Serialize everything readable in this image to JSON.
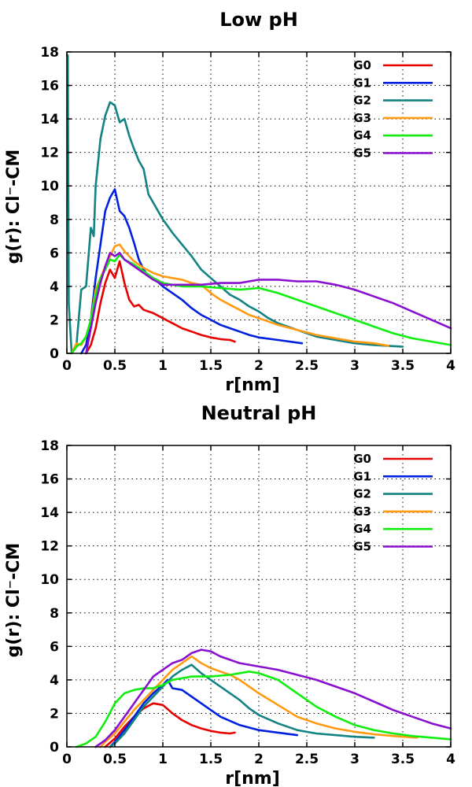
{
  "colors": {
    "G0": "#e60000",
    "G1": "#0020e0",
    "G2": "#138282",
    "G3": "#ff9a10",
    "G4": "#10ee10",
    "G5": "#8a10d0"
  },
  "chart_data": [
    {
      "type": "line",
      "title": "Low pH",
      "xlabel": "r[nm]",
      "ylabel": "g(r): Cl⁻-CM",
      "xlim": [
        0,
        4
      ],
      "ylim": [
        0,
        18
      ],
      "xticks": [
        "0",
        "0.5",
        "1",
        "1.5",
        "2",
        "2.5",
        "3",
        "3.5",
        "4"
      ],
      "yticks": [
        "0",
        "2",
        "4",
        "6",
        "8",
        "10",
        "12",
        "14",
        "16",
        "18"
      ],
      "grid": true,
      "legend_position": "top-right",
      "series": [
        {
          "name": "G0",
          "x": [
            0.2,
            0.25,
            0.3,
            0.35,
            0.4,
            0.45,
            0.5,
            0.55,
            0.6,
            0.65,
            0.7,
            0.75,
            0.8,
            0.9,
            1.0,
            1.1,
            1.2,
            1.3,
            1.4,
            1.5,
            1.6,
            1.7,
            1.75
          ],
          "y": [
            0,
            0.5,
            1.5,
            3.0,
            4.2,
            5.0,
            4.5,
            5.5,
            4.2,
            3.2,
            2.8,
            2.9,
            2.6,
            2.4,
            2.1,
            1.8,
            1.5,
            1.3,
            1.1,
            0.95,
            0.85,
            0.8,
            0.7
          ]
        },
        {
          "name": "G1",
          "x": [
            0.15,
            0.2,
            0.25,
            0.3,
            0.35,
            0.4,
            0.45,
            0.5,
            0.55,
            0.6,
            0.65,
            0.7,
            0.75,
            0.8,
            0.85,
            0.9,
            1.0,
            1.1,
            1.2,
            1.3,
            1.4,
            1.5,
            1.6,
            1.7,
            1.8,
            1.9,
            2.0,
            2.2,
            2.45
          ],
          "y": [
            0,
            0.5,
            2.0,
            4.5,
            6.5,
            8.5,
            9.3,
            9.8,
            8.5,
            8.2,
            7.5,
            6.6,
            5.6,
            5.0,
            4.6,
            4.5,
            4.0,
            3.6,
            3.2,
            2.7,
            2.3,
            2.0,
            1.7,
            1.5,
            1.3,
            1.1,
            0.95,
            0.8,
            0.6
          ]
        },
        {
          "name": "G2",
          "x": [
            0.01,
            0.02,
            0.05,
            0.1,
            0.15,
            0.2,
            0.25,
            0.28,
            0.3,
            0.35,
            0.4,
            0.45,
            0.5,
            0.55,
            0.6,
            0.65,
            0.7,
            0.75,
            0.8,
            0.85,
            0.9,
            1.0,
            1.1,
            1.2,
            1.3,
            1.4,
            1.5,
            1.6,
            1.7,
            1.8,
            1.9,
            2.0,
            2.1,
            2.2,
            2.4,
            2.6,
            2.8,
            3.0,
            3.2,
            3.5
          ],
          "y": [
            17.8,
            3.0,
            0,
            0.5,
            3.8,
            4.0,
            7.5,
            7.0,
            10.0,
            12.8,
            14.2,
            15.0,
            14.8,
            13.8,
            14.0,
            13.0,
            12.2,
            11.5,
            11.0,
            9.5,
            9.0,
            8.0,
            7.2,
            6.5,
            5.8,
            5.0,
            4.5,
            4.0,
            3.5,
            3.2,
            2.8,
            2.5,
            2.1,
            1.8,
            1.4,
            1.0,
            0.8,
            0.6,
            0.5,
            0.4
          ]
        },
        {
          "name": "G3",
          "x": [
            0.05,
            0.1,
            0.15,
            0.2,
            0.25,
            0.3,
            0.35,
            0.4,
            0.45,
            0.5,
            0.55,
            0.6,
            0.65,
            0.7,
            0.8,
            0.9,
            1.0,
            1.1,
            1.2,
            1.3,
            1.4,
            1.5,
            1.6,
            1.7,
            1.8,
            1.9,
            2.0,
            2.2,
            2.4,
            2.6,
            2.8,
            3.0,
            3.2,
            3.35
          ],
          "y": [
            0,
            0.6,
            0.5,
            1.0,
            2.0,
            3.8,
            4.5,
            5.2,
            5.8,
            6.4,
            6.5,
            6.1,
            5.8,
            5.5,
            5.1,
            4.8,
            4.6,
            4.5,
            4.4,
            4.2,
            4.1,
            3.6,
            3.2,
            2.9,
            2.6,
            2.3,
            2.1,
            1.7,
            1.4,
            1.1,
            0.9,
            0.7,
            0.6,
            0.45
          ]
        },
        {
          "name": "G4",
          "x": [
            0.05,
            0.1,
            0.15,
            0.2,
            0.25,
            0.3,
            0.35,
            0.4,
            0.45,
            0.5,
            0.55,
            0.6,
            0.7,
            0.8,
            0.9,
            1.0,
            1.2,
            1.4,
            1.6,
            1.8,
            2.0,
            2.2,
            2.4,
            2.6,
            2.8,
            3.0,
            3.2,
            3.4,
            3.6,
            3.8,
            4.0
          ],
          "y": [
            0,
            0.4,
            0.6,
            1.0,
            2.0,
            3.5,
            4.5,
            5.0,
            5.6,
            5.5,
            5.9,
            5.6,
            5.3,
            4.9,
            4.5,
            4.2,
            4.0,
            4.0,
            3.9,
            3.8,
            3.9,
            3.6,
            3.2,
            2.8,
            2.4,
            2.0,
            1.6,
            1.2,
            0.9,
            0.7,
            0.5
          ]
        },
        {
          "name": "G5",
          "x": [
            0.2,
            0.25,
            0.3,
            0.35,
            0.4,
            0.45,
            0.5,
            0.55,
            0.6,
            0.7,
            0.8,
            0.9,
            1.0,
            1.2,
            1.4,
            1.6,
            1.8,
            2.0,
            2.2,
            2.4,
            2.6,
            2.8,
            3.0,
            3.2,
            3.4,
            3.6,
            3.8,
            4.0
          ],
          "y": [
            0,
            1.5,
            3.0,
            4.2,
            5.2,
            6.0,
            5.8,
            6.0,
            5.6,
            5.2,
            4.8,
            4.4,
            4.1,
            4.1,
            4.1,
            4.2,
            4.2,
            4.4,
            4.4,
            4.3,
            4.3,
            4.1,
            3.8,
            3.4,
            3.0,
            2.5,
            2.0,
            1.5
          ]
        }
      ]
    },
    {
      "type": "line",
      "title": "Neutral pH",
      "xlabel": "r[nm]",
      "ylabel": "g(r): Cl⁻-CM",
      "xlim": [
        0,
        4
      ],
      "ylim": [
        0,
        18
      ],
      "xticks": [
        "0",
        "0.5",
        "1",
        "1.5",
        "2",
        "2.5",
        "3",
        "3.5",
        "4"
      ],
      "yticks": [
        "0",
        "2",
        "4",
        "6",
        "8",
        "10",
        "12",
        "14",
        "16",
        "18"
      ],
      "grid": true,
      "legend_position": "top-right",
      "series": [
        {
          "name": "G0",
          "x": [
            0.4,
            0.5,
            0.6,
            0.7,
            0.8,
            0.9,
            1.0,
            1.1,
            1.2,
            1.3,
            1.4,
            1.5,
            1.6,
            1.7,
            1.75
          ],
          "y": [
            0,
            0.5,
            1.2,
            1.8,
            2.3,
            2.6,
            2.5,
            2.0,
            1.6,
            1.3,
            1.1,
            0.95,
            0.85,
            0.8,
            0.85
          ]
        },
        {
          "name": "G1",
          "x": [
            0.45,
            0.5,
            0.6,
            0.7,
            0.8,
            0.9,
            1.0,
            1.05,
            1.1,
            1.2,
            1.3,
            1.4,
            1.5,
            1.6,
            1.8,
            2.0,
            2.2,
            2.4
          ],
          "y": [
            0,
            0.3,
            1.0,
            1.8,
            2.6,
            3.2,
            3.7,
            4.0,
            3.5,
            3.4,
            3.0,
            2.6,
            2.2,
            1.8,
            1.3,
            1.0,
            0.85,
            0.7
          ]
        },
        {
          "name": "G2",
          "x": [
            0.45,
            0.5,
            0.6,
            0.7,
            0.8,
            0.9,
            1.0,
            1.1,
            1.2,
            1.3,
            1.4,
            1.5,
            1.6,
            1.7,
            1.8,
            1.9,
            2.0,
            2.2,
            2.4,
            2.6,
            2.8,
            3.0,
            3.2
          ],
          "y": [
            0,
            0.2,
            0.8,
            1.6,
            2.4,
            3.0,
            3.6,
            4.2,
            4.6,
            4.9,
            4.4,
            4.0,
            3.6,
            3.2,
            2.8,
            2.3,
            1.9,
            1.4,
            1.0,
            0.8,
            0.7,
            0.6,
            0.55
          ]
        },
        {
          "name": "G3",
          "x": [
            0.35,
            0.4,
            0.5,
            0.6,
            0.7,
            0.8,
            0.9,
            1.0,
            1.1,
            1.2,
            1.3,
            1.4,
            1.5,
            1.6,
            1.7,
            1.8,
            1.9,
            2.0,
            2.2,
            2.4,
            2.6,
            2.8,
            3.0,
            3.2,
            3.4,
            3.65
          ],
          "y": [
            0,
            0.3,
            0.8,
            1.5,
            2.2,
            2.8,
            3.4,
            4.0,
            4.6,
            5.0,
            5.4,
            5.0,
            4.7,
            4.5,
            4.3,
            4.0,
            3.6,
            3.2,
            2.5,
            1.8,
            1.4,
            1.1,
            0.9,
            0.75,
            0.65,
            0.55
          ]
        },
        {
          "name": "G4",
          "x": [
            0.1,
            0.15,
            0.2,
            0.3,
            0.4,
            0.5,
            0.6,
            0.7,
            0.8,
            0.9,
            1.0,
            1.1,
            1.2,
            1.3,
            1.5,
            1.7,
            1.9,
            2.0,
            2.2,
            2.4,
            2.6,
            2.8,
            3.0,
            3.2,
            3.4,
            3.6,
            3.8,
            4.0
          ],
          "y": [
            0,
            0.1,
            0.2,
            0.6,
            1.5,
            2.6,
            3.2,
            3.4,
            3.5,
            3.5,
            3.7,
            4.0,
            4.1,
            4.2,
            4.2,
            4.3,
            4.5,
            4.4,
            4.0,
            3.2,
            2.4,
            1.8,
            1.3,
            1.0,
            0.8,
            0.65,
            0.55,
            0.45
          ]
        },
        {
          "name": "G5",
          "x": [
            0.3,
            0.4,
            0.5,
            0.6,
            0.7,
            0.8,
            0.9,
            1.0,
            1.1,
            1.2,
            1.3,
            1.4,
            1.5,
            1.6,
            1.8,
            2.0,
            2.2,
            2.4,
            2.6,
            2.8,
            3.0,
            3.2,
            3.4,
            3.6,
            3.8,
            4.0
          ],
          "y": [
            0,
            0.4,
            1.0,
            1.8,
            2.6,
            3.4,
            4.2,
            4.6,
            5.0,
            5.2,
            5.6,
            5.8,
            5.7,
            5.4,
            5.0,
            4.8,
            4.6,
            4.3,
            4.0,
            3.6,
            3.2,
            2.7,
            2.2,
            1.8,
            1.4,
            1.1
          ]
        }
      ]
    }
  ]
}
